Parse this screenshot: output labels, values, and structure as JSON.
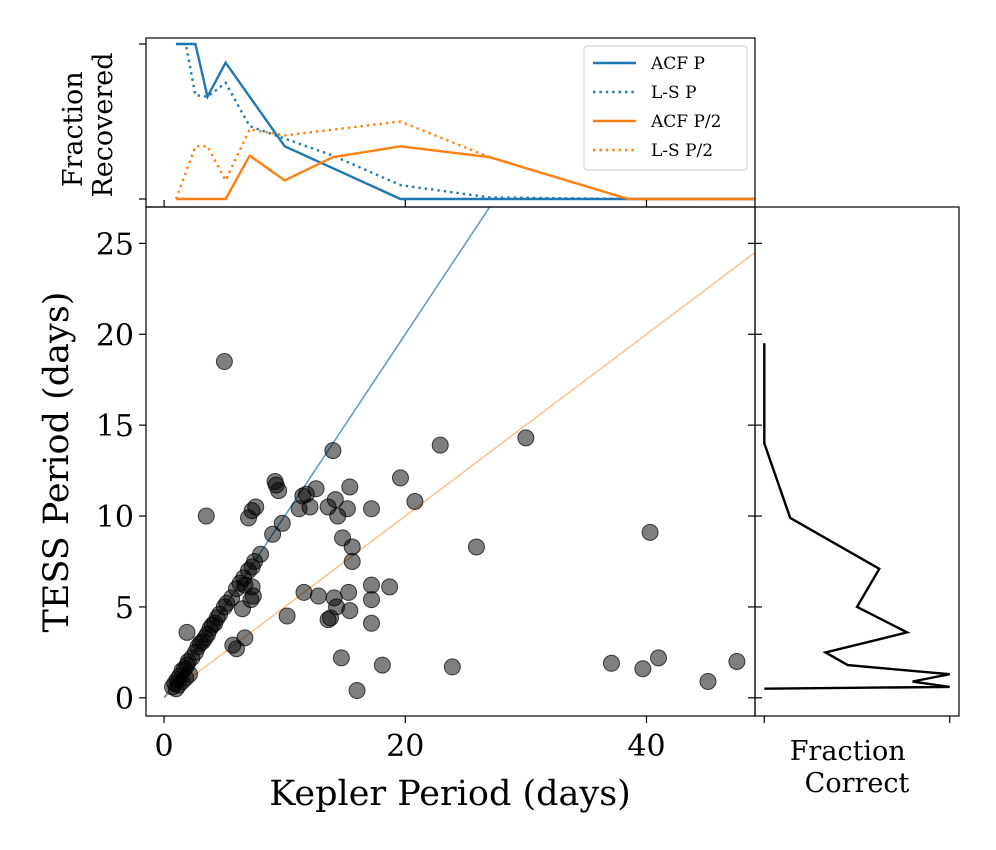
{
  "chart_data": [
    {
      "panel": "main",
      "type": "scatter",
      "xlabel": "Kepler Period (days)",
      "ylabel": "TESS Period (days)",
      "xlim": [
        -1.5,
        49
      ],
      "ylim": [
        -1,
        27
      ],
      "xticks": [
        0,
        20,
        40
      ],
      "yticks": [
        0,
        5,
        10,
        15,
        20,
        25
      ],
      "grid": false,
      "marker_color": "#000000",
      "marker_alpha": 0.5,
      "reference_lines": [
        {
          "relation": "y = x",
          "color": "#1f77b4"
        },
        {
          "relation": "y = x / 2",
          "color": "#ff7f0e"
        }
      ],
      "points": [
        [
          0.7,
          0.6
        ],
        [
          0.9,
          0.8
        ],
        [
          1.1,
          1.0
        ],
        [
          1.3,
          1.2
        ],
        [
          1.5,
          1.5
        ],
        [
          1.7,
          1.6
        ],
        [
          1.9,
          1.8
        ],
        [
          2.0,
          2.0
        ],
        [
          2.3,
          2.2
        ],
        [
          2.6,
          2.5
        ],
        [
          2.8,
          2.8
        ],
        [
          3.0,
          3.0
        ],
        [
          3.2,
          3.1
        ],
        [
          3.4,
          3.3
        ],
        [
          3.6,
          3.5
        ],
        [
          3.8,
          3.8
        ],
        [
          4.0,
          4.0
        ],
        [
          4.2,
          4.1
        ],
        [
          4.4,
          4.4
        ],
        [
          4.6,
          4.6
        ],
        [
          5.0,
          5.0
        ],
        [
          5.2,
          5.2
        ],
        [
          5.6,
          5.5
        ],
        [
          6.0,
          6.0
        ],
        [
          6.3,
          6.3
        ],
        [
          6.6,
          6.6
        ],
        [
          7.0,
          7.0
        ],
        [
          7.3,
          7.2
        ],
        [
          7.5,
          7.5
        ],
        [
          8.0,
          7.9
        ],
        [
          9.0,
          9.0
        ],
        [
          9.8,
          9.6
        ],
        [
          1.0,
          0.5
        ],
        [
          1.2,
          0.7
        ],
        [
          1.5,
          0.9
        ],
        [
          1.8,
          1.1
        ],
        [
          2.1,
          1.3
        ],
        [
          1.9,
          3.6
        ],
        [
          3.5,
          10.0
        ],
        [
          5.0,
          18.5
        ],
        [
          5.7,
          2.9
        ],
        [
          6.0,
          2.7
        ],
        [
          6.7,
          3.3
        ],
        [
          6.5,
          4.9
        ],
        [
          7.2,
          5.4
        ],
        [
          7.4,
          5.6
        ],
        [
          7.3,
          6.1
        ],
        [
          6.7,
          6.2
        ],
        [
          7.0,
          9.9
        ],
        [
          7.3,
          10.3
        ],
        [
          7.6,
          10.5
        ],
        [
          9.2,
          11.9
        ],
        [
          9.3,
          11.7
        ],
        [
          9.5,
          11.4
        ],
        [
          10.2,
          4.5
        ],
        [
          11.2,
          10.4
        ],
        [
          11.5,
          11.1
        ],
        [
          11.8,
          11.2
        ],
        [
          12.1,
          10.5
        ],
        [
          11.6,
          5.8
        ],
        [
          12.6,
          11.5
        ],
        [
          12.8,
          5.6
        ],
        [
          13.6,
          4.3
        ],
        [
          13.8,
          4.4
        ],
        [
          13.6,
          10.5
        ],
        [
          14.0,
          13.6
        ],
        [
          14.2,
          10.9
        ],
        [
          14.4,
          10.0
        ],
        [
          14.1,
          5.5
        ],
        [
          14.3,
          5.0
        ],
        [
          14.7,
          2.2
        ],
        [
          14.8,
          8.8
        ],
        [
          15.2,
          10.4
        ],
        [
          15.4,
          11.6
        ],
        [
          15.3,
          5.8
        ],
        [
          15.4,
          4.8
        ],
        [
          15.6,
          8.3
        ],
        [
          15.6,
          7.5
        ],
        [
          16.0,
          0.4
        ],
        [
          17.2,
          6.2
        ],
        [
          17.2,
          5.4
        ],
        [
          17.2,
          4.1
        ],
        [
          17.2,
          10.4
        ],
        [
          18.1,
          1.8
        ],
        [
          18.7,
          6.1
        ],
        [
          19.6,
          12.1
        ],
        [
          20.8,
          10.8
        ],
        [
          22.9,
          13.9
        ],
        [
          23.9,
          1.7
        ],
        [
          25.9,
          8.3
        ],
        [
          30.0,
          14.3
        ],
        [
          37.1,
          1.9
        ],
        [
          39.7,
          1.6
        ],
        [
          40.3,
          9.1
        ],
        [
          41.0,
          2.2
        ],
        [
          45.1,
          0.9
        ],
        [
          47.5,
          2.0
        ]
      ]
    },
    {
      "panel": "top",
      "type": "line",
      "ylabel": "Fraction\nRecovered",
      "xlim": [
        -1.5,
        49
      ],
      "legend_position": "top-right",
      "series": [
        {
          "name": "ACF P",
          "style": "solid",
          "color": "#1f77b4",
          "x": [
            1,
            2.6,
            3.6,
            5.1,
            10,
            19.6,
            38.5,
            49
          ],
          "y": [
            1.0,
            1.0,
            0.66,
            0.88,
            0.34,
            0.0,
            0.0,
            0.0
          ]
        },
        {
          "name": "L-S P",
          "style": "dotted",
          "color": "#1f77b4",
          "x": [
            1,
            1.8,
            2.6,
            3.6,
            5.1,
            7.1,
            14.0,
            19.6,
            27,
            38.5,
            49
          ],
          "y": [
            1.0,
            1.0,
            0.67,
            0.66,
            0.75,
            0.47,
            0.28,
            0.09,
            0.01,
            0.0,
            0.0
          ]
        },
        {
          "name": "ACF P/2",
          "style": "solid",
          "color": "#ff7f0e",
          "x": [
            1,
            5.1,
            7.1,
            10,
            14.0,
            19.6,
            27,
            38.5,
            49
          ],
          "y": [
            0.0,
            0.0,
            0.28,
            0.12,
            0.27,
            0.34,
            0.27,
            0.0,
            0.0
          ]
        },
        {
          "name": "L-S P/2",
          "style": "dotted",
          "color": "#ff7f0e",
          "x": [
            1,
            2.6,
            3.6,
            5.1,
            7.1,
            10,
            19.6,
            27
          ],
          "y": [
            0.0,
            0.34,
            0.34,
            0.12,
            0.45,
            0.41,
            0.5,
            0.27
          ]
        }
      ]
    },
    {
      "panel": "right",
      "type": "line",
      "xlabel": "Fraction\nCorrect",
      "ylim": [
        -1,
        27
      ],
      "xlim": [
        -0.05,
        1.05
      ],
      "line_color": "#000000",
      "x": [
        0.0,
        0.0,
        0.14,
        0.62,
        0.5,
        0.77,
        0.33,
        0.45,
        1.0,
        0.8,
        1.0,
        0.0
      ],
      "y": [
        19.5,
        14.0,
        9.9,
        7.1,
        5.0,
        3.6,
        2.5,
        1.8,
        1.3,
        0.9,
        0.6,
        0.5
      ]
    }
  ]
}
